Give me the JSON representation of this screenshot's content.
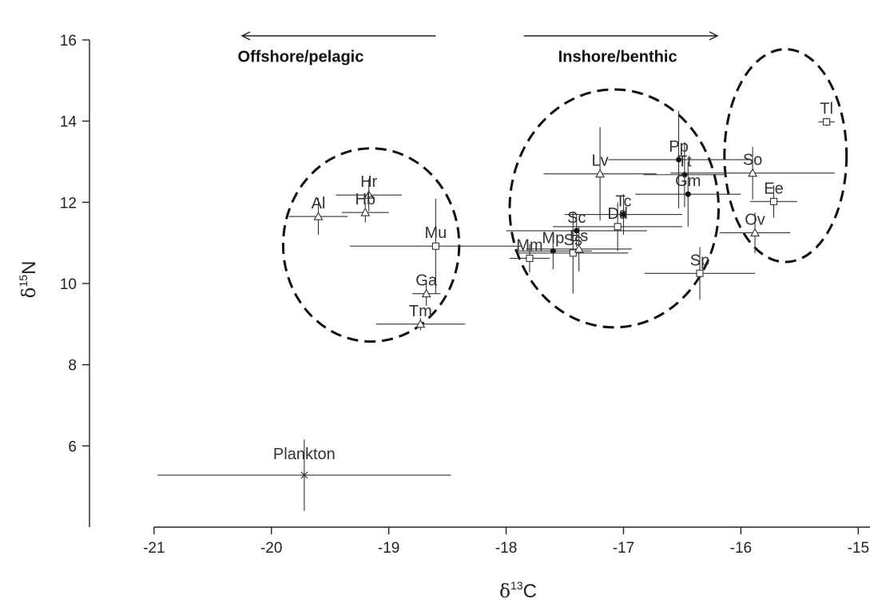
{
  "chart_data": {
    "type": "scatter",
    "xlabel_prefix": "δ",
    "xlabel_sup": "13",
    "xlabel_main": "C",
    "ylabel_prefix": "δ",
    "ylabel_sup": "15",
    "ylabel_main": "N",
    "xlim": [
      -21.55,
      -14.9
    ],
    "ylim": [
      4.0,
      16.55
    ],
    "xticks": [
      -21,
      -20,
      -19,
      -18,
      -17,
      -16,
      -15
    ],
    "xtick_labels": [
      "-21",
      "-20",
      "-19",
      "-18",
      "-17",
      "-16",
      "-15"
    ],
    "yticks": [
      6,
      8,
      10,
      12,
      14,
      16
    ],
    "ytick_labels": [
      "6",
      "8",
      "10",
      "12",
      "14",
      "16"
    ],
    "annotations": [
      {
        "text": "Offshore/pelagic",
        "x": -19.75,
        "y": 15.6,
        "arrow_from": -18.6,
        "arrow_to": -20.25,
        "arrow_y": 16.1
      },
      {
        "text": "Inshore/benthic",
        "x": -17.05,
        "y": 15.6,
        "arrow_from": -17.85,
        "arrow_to": -16.2,
        "arrow_y": 16.1
      }
    ],
    "ellipses": [
      {
        "cx": -19.15,
        "cy": 10.95,
        "rx": 0.75,
        "ry": 2.38
      },
      {
        "cx": -17.08,
        "cy": 11.85,
        "rx": 0.89,
        "ry": 2.93
      },
      {
        "cx": -15.62,
        "cy": 13.15,
        "rx": 0.52,
        "ry": 2.62
      }
    ],
    "points": [
      {
        "label": "Al",
        "x": -19.6,
        "y": 11.65,
        "xerr": 0.25,
        "yerr": 0.45,
        "marker": "triangle"
      },
      {
        "label": "Hr",
        "x": -19.17,
        "y": 12.18,
        "xerr": 0.28,
        "yerr": 0.4,
        "marker": "triangle"
      },
      {
        "label": "Hb",
        "x": -19.2,
        "y": 11.75,
        "xerr": 0.2,
        "yerr": 0.25,
        "marker": "triangle"
      },
      {
        "label": "Mu",
        "x": -18.6,
        "y": 10.92,
        "xerr": 0.73,
        "yerr": 1.17,
        "marker": "square"
      },
      {
        "label": "Ga",
        "x": -18.68,
        "y": 9.75,
        "xerr": 0.12,
        "yerr": 0.3,
        "marker": "triangle"
      },
      {
        "label": "Tm",
        "x": -18.73,
        "y": 9.0,
        "xerr": 0.38,
        "yerr": 0.15,
        "marker": "triangle"
      },
      {
        "label": "Mm",
        "x": -17.8,
        "y": 10.62,
        "xerr": 0.17,
        "yerr": 0.35,
        "marker": "square"
      },
      {
        "label": "Mp",
        "x": -17.6,
        "y": 10.8,
        "xerr": 0.33,
        "yerr": 0.45,
        "marker": "dot"
      },
      {
        "label": "Ss",
        "x": -17.43,
        "y": 10.75,
        "xerr": 0.47,
        "yerr": 1.0,
        "marker": "square"
      },
      {
        "label": "Es",
        "x": -17.38,
        "y": 10.85,
        "xerr": 0.45,
        "yerr": 0.55,
        "marker": "triangle"
      },
      {
        "label": "Sc",
        "x": -17.4,
        "y": 11.3,
        "xerr": 0.6,
        "yerr": 0.4,
        "marker": "dot"
      },
      {
        "label": "Lv",
        "x": -17.2,
        "y": 12.7,
        "xerr": 0.48,
        "yerr": 1.15,
        "marker": "triangle"
      },
      {
        "label": "Tc",
        "x": -17.0,
        "y": 11.7,
        "xerr": 0.5,
        "yerr": 0.5,
        "marker": "dot"
      },
      {
        "label": "Dd",
        "x": -17.05,
        "y": 11.4,
        "xerr": 0.55,
        "yerr": 0.6,
        "marker": "square"
      },
      {
        "label": "Pp",
        "x": -16.53,
        "y": 13.05,
        "xerr": 0.6,
        "yerr": 1.2,
        "marker": "dot"
      },
      {
        "label": "Tt",
        "x": -16.48,
        "y": 12.68,
        "xerr": 0.35,
        "yerr": 0.8,
        "marker": "dot"
      },
      {
        "label": "Gm",
        "x": -16.45,
        "y": 12.2,
        "xerr": 0.45,
        "yerr": 0.8,
        "marker": "dot"
      },
      {
        "label": "Sp",
        "x": -16.35,
        "y": 10.25,
        "xerr": 0.47,
        "yerr": 0.65,
        "marker": "square"
      },
      {
        "label": "So",
        "x": -15.9,
        "y": 12.72,
        "xerr": 0.7,
        "yerr": 0.65,
        "marker": "triangle"
      },
      {
        "label": "Ee",
        "x": -15.72,
        "y": 12.02,
        "xerr": 0.2,
        "yerr": 0.4,
        "marker": "square"
      },
      {
        "label": "Ov",
        "x": -15.88,
        "y": 11.25,
        "xerr": 0.3,
        "yerr": 0.5,
        "marker": "triangle"
      },
      {
        "label": "Tl",
        "x": -15.27,
        "y": 13.98,
        "xerr": 0.07,
        "yerr": 0.1,
        "marker": "square"
      },
      {
        "label": "Plankton",
        "x": -19.72,
        "y": 5.28,
        "xerr": 1.25,
        "yerr": 0.88,
        "marker": "cross"
      }
    ]
  }
}
